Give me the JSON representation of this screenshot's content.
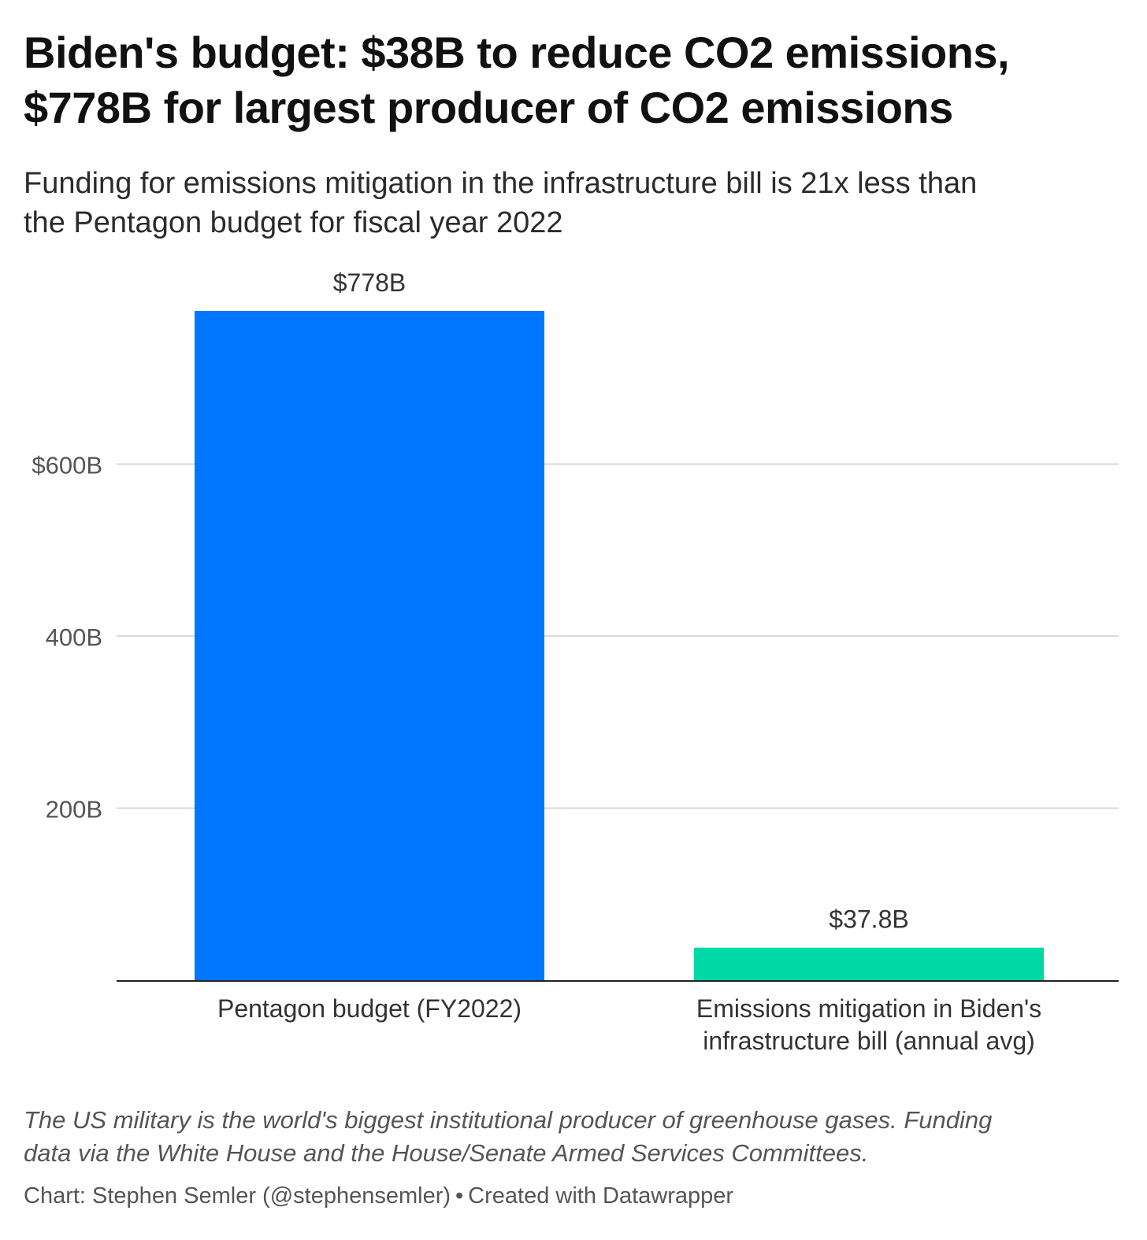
{
  "header": {
    "title_line1": "Biden's budget: $38B to reduce CO2 emissions,",
    "title_line2": "$778B for largest producer of CO2 emissions",
    "subtitle_line1": "Funding for emissions mitigation in the infrastructure bill is 21x less than",
    "subtitle_line2": "the Pentagon budget for fiscal year 2022"
  },
  "chart_data": {
    "type": "bar",
    "title": "Biden's budget: $38B to reduce CO2 emissions, $778B for largest producer of CO2 emissions",
    "xlabel": "",
    "ylabel": "",
    "ylim": [
      0,
      778
    ],
    "grid": true,
    "categories": [
      [
        "Pentagon budget (FY2022)"
      ],
      [
        "Emissions mitigation in Biden's",
        "infrastructure bill (annual avg)"
      ]
    ],
    "values": [
      778,
      37.8
    ],
    "value_labels": [
      "$778B",
      "$37.8B"
    ],
    "bar_colors": [
      "#0177ff",
      "#00d9a6"
    ],
    "yticks": [
      {
        "value": 200,
        "label": "200B"
      },
      {
        "value": 400,
        "label": "400B"
      },
      {
        "value": 600,
        "label": "$600B"
      }
    ],
    "colors": {
      "grid": "#d9d9d9",
      "axis": "#222222",
      "tick_label": "#555555",
      "value_label": "#333333",
      "category_label": "#333333"
    }
  },
  "notes": {
    "text_line1": "The US military is the world's biggest institutional producer of greenhouse gases. Funding",
    "text_line2": "data via the White House and the House/Senate Armed Services Committees."
  },
  "footer": {
    "credit": "Chart: Stephen Semler (@stephensemler)",
    "separator": "•",
    "tool": "Created with Datawrapper"
  }
}
